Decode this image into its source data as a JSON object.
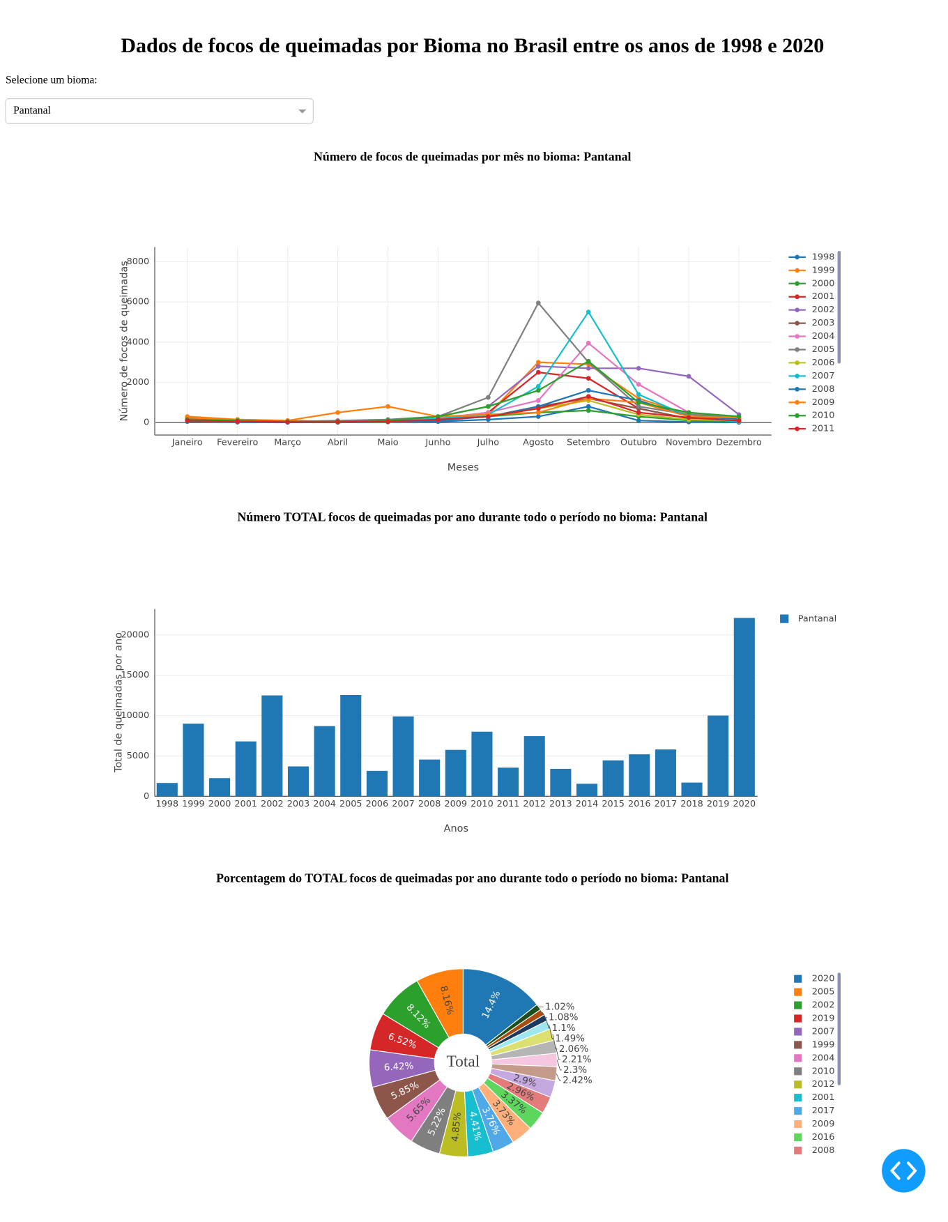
{
  "page": {
    "title": "Dados de focos de queimadas por Bioma no Brasil entre os anos de 1998 e 2020",
    "dropdown_label": "Selecione um bioma:",
    "dropdown_value": "Pantanal"
  },
  "chart_data": [
    {
      "type": "line",
      "title": "Número de focos de queimadas por mês no bioma: Pantanal",
      "x_label": "Meses",
      "y_label": "Número de focos de queimadas",
      "categories": [
        "Janeiro",
        "Fevereiro",
        "Março",
        "Abril",
        "Maio",
        "Junho",
        "Julho",
        "Agosto",
        "Setembro",
        "Outubro",
        "Novembro",
        "Dezembro"
      ],
      "ylim": [
        -620,
        8730
      ],
      "yticks": [
        0,
        2000,
        4000,
        6000,
        8000
      ],
      "grid": true,
      "legend": "right",
      "series": [
        {
          "name": "1998",
          "color": "#1f77b4",
          "values": [
            100,
            50,
            20,
            10,
            30,
            50,
            150,
            300,
            800,
            100,
            30,
            10
          ]
        },
        {
          "name": "1999",
          "color": "#ff7f0e",
          "values": [
            300,
            150,
            100,
            50,
            50,
            200,
            400,
            3000,
            2900,
            1200,
            400,
            200
          ]
        },
        {
          "name": "2000",
          "color": "#2ca02c",
          "values": [
            100,
            50,
            30,
            20,
            30,
            150,
            300,
            500,
            600,
            300,
            100,
            70
          ]
        },
        {
          "name": "2001",
          "color": "#d62728",
          "values": [
            150,
            100,
            50,
            30,
            80,
            200,
            500,
            2500,
            2200,
            700,
            200,
            90
          ]
        },
        {
          "name": "2002",
          "color": "#9467bd",
          "values": [
            200,
            100,
            50,
            40,
            100,
            300,
            800,
            2800,
            2700,
            2700,
            2300,
            400
          ]
        },
        {
          "name": "2003",
          "color": "#8c564b",
          "values": [
            100,
            50,
            30,
            30,
            50,
            150,
            300,
            800,
            1200,
            700,
            200,
            90
          ]
        },
        {
          "name": "2004",
          "color": "#e377c2",
          "values": [
            150,
            100,
            50,
            50,
            50,
            200,
            500,
            1100,
            3950,
            1900,
            500,
            150
          ]
        },
        {
          "name": "2005",
          "color": "#7f7f7f",
          "values": [
            200,
            100,
            50,
            100,
            150,
            300,
            1250,
            5950,
            3000,
            800,
            400,
            250
          ]
        },
        {
          "name": "2006",
          "color": "#bcbd22",
          "values": [
            100,
            50,
            30,
            20,
            50,
            150,
            300,
            700,
            1100,
            400,
            150,
            100
          ]
        },
        {
          "name": "2007",
          "color": "#17becf",
          "values": [
            100,
            50,
            30,
            30,
            50,
            200,
            400,
            1800,
            5500,
            1400,
            300,
            40
          ]
        },
        {
          "name": "2008",
          "color": "#1f77b4",
          "values": [
            50,
            20,
            10,
            20,
            50,
            100,
            300,
            800,
            1600,
            1100,
            300,
            180
          ]
        },
        {
          "name": "2009",
          "color": "#ff7f0e",
          "values": [
            250,
            150,
            100,
            500,
            800,
            300,
            400,
            500,
            1200,
            1000,
            300,
            250
          ]
        },
        {
          "name": "2010",
          "color": "#2ca02c",
          "values": [
            150,
            100,
            50,
            50,
            100,
            300,
            800,
            1600,
            3050,
            1000,
            500,
            300
          ]
        },
        {
          "name": "2011",
          "color": "#d62728",
          "values": [
            100,
            50,
            30,
            30,
            50,
            150,
            300,
            700,
            1300,
            500,
            250,
            90
          ]
        }
      ]
    },
    {
      "type": "bar",
      "title": "Número TOTAL focos de queimadas por ano durante todo o período no bioma: Pantanal",
      "x_label": "Anos",
      "y_label": "Total de queimadas por ano",
      "categories": [
        "1998",
        "1999",
        "2000",
        "2001",
        "2002",
        "2003",
        "2004",
        "2005",
        "2006",
        "2007",
        "2008",
        "2009",
        "2010",
        "2011",
        "2012",
        "2013",
        "2014",
        "2015",
        "2016",
        "2017",
        "2018",
        "2019",
        "2020"
      ],
      "ylim": [
        0,
        23200
      ],
      "yticks": [
        0,
        5000,
        10000,
        15000,
        20000
      ],
      "grid": true,
      "legend": "right",
      "series": [
        {
          "name": "Pantanal",
          "color": "#1f77b4",
          "values": [
            1650,
            9000,
            2250,
            6800,
            12500,
            3700,
            8700,
            12550,
            3150,
            9900,
            4550,
            5750,
            8000,
            3550,
            7450,
            3400,
            1550,
            4450,
            5200,
            5800,
            1700,
            10000,
            22100
          ]
        }
      ]
    },
    {
      "type": "pie",
      "title": "Porcentagem do TOTAL focos de queimadas por ano durante todo o período no bioma: Pantanal",
      "center_text": "Total",
      "legend": "right",
      "categories": [
        "2020",
        "2005",
        "2002",
        "2019",
        "2007",
        "1999",
        "2004",
        "2010",
        "2012",
        "2001",
        "2017",
        "2009",
        "2016",
        "2008",
        null,
        null,
        null,
        null,
        null,
        null,
        null,
        null,
        null
      ],
      "values": [
        14.4,
        8.16,
        8.12,
        6.52,
        6.42,
        5.85,
        5.65,
        5.22,
        4.85,
        4.41,
        3.76,
        3.73,
        3.37,
        2.96,
        2.9,
        2.42,
        2.3,
        2.21,
        2.06,
        1.49,
        1.1,
        1.08,
        1.02
      ],
      "value_labels": [
        "14.4%",
        "8.16%",
        "8.12%",
        "6.52%",
        "6.42%",
        "5.85%",
        "5.65%",
        "5.22%",
        "4.85%",
        "4.41%",
        "3.76%",
        "3.73%",
        "3.37%",
        "2.96%",
        "2.9%",
        "2.42%",
        "2.3%",
        "2.21%",
        "2.06%",
        "1.49%",
        "1.1%",
        "1.08%",
        "1.02%"
      ],
      "colors": [
        "#1f77b4",
        "#ff7f0e",
        "#2ca02c",
        "#d62728",
        "#9467bd",
        "#8c564b",
        "#e377c2",
        "#7f7f7f",
        "#bcbd22",
        "#17becf",
        "#4fa8e8",
        "#ffb07a",
        "#5cd65c",
        "#e37b7b",
        "#c5a8e0",
        "#c49a8a",
        "#f5c6e0",
        "#b5b5b5",
        "#dbe070",
        "#9de8f0",
        "#1a3a5f",
        "#a84d0f",
        "#1c4f1c"
      ]
    }
  ]
}
